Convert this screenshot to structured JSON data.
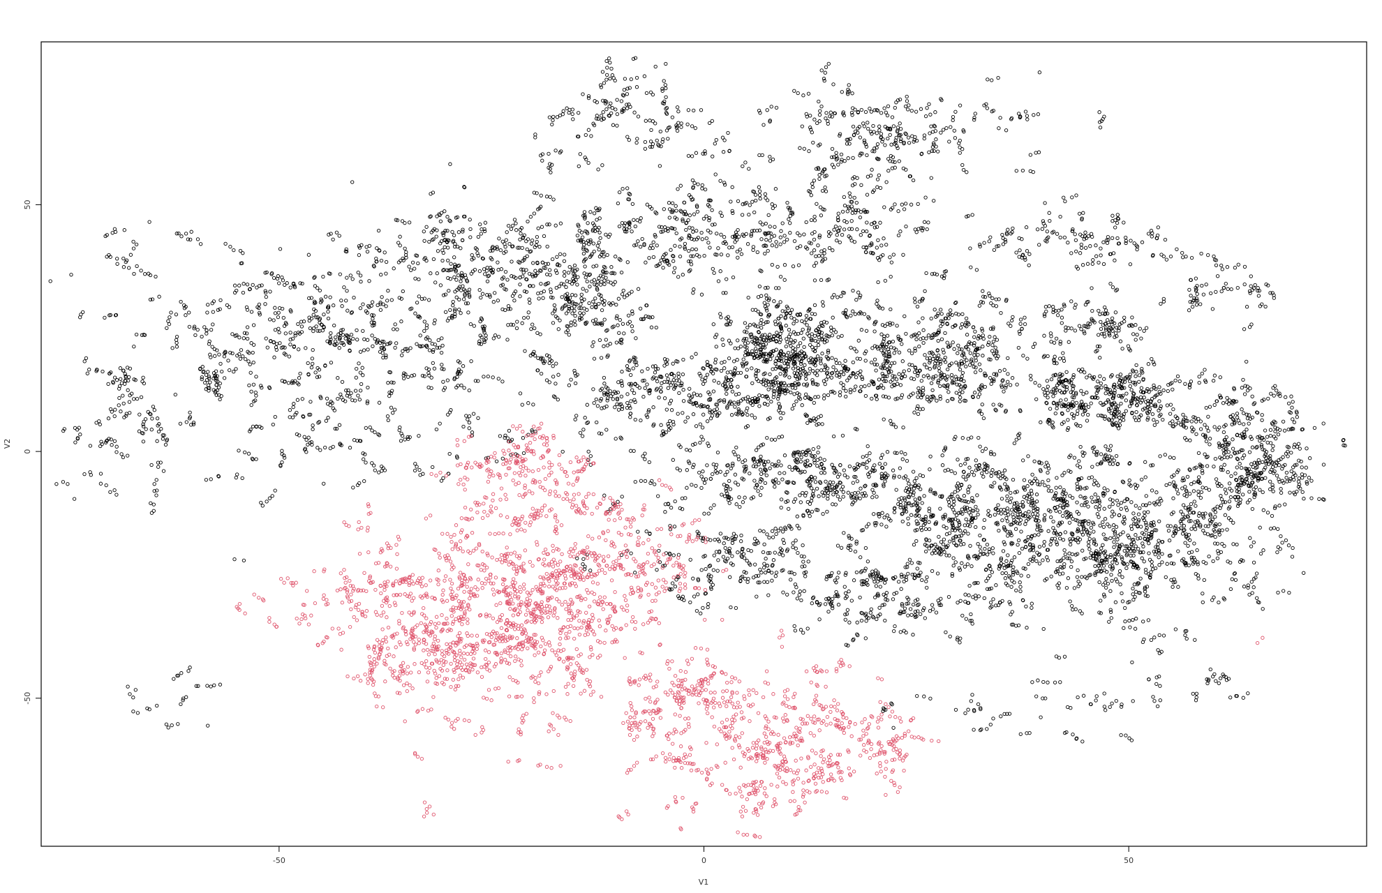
{
  "chart_data": {
    "type": "scatter",
    "title": "",
    "xlabel": "V1",
    "ylabel": "V2",
    "xlim": [
      -78,
      78
    ],
    "ylim": [
      -80,
      83
    ],
    "xticks": [
      -50,
      0,
      50
    ],
    "yticks": [
      -50,
      0,
      50
    ],
    "xtick_labels": [
      "-50",
      "0",
      "50"
    ],
    "ytick_labels": [
      "-50",
      "0",
      "50"
    ],
    "grid": false,
    "legend": "none",
    "series": [
      {
        "color": "#000000",
        "marker": "open-circle",
        "clusters": [
          {
            "cx": -44,
            "cy": 22,
            "rx": 26,
            "ry": 28,
            "n": 1000
          },
          {
            "cx": -68,
            "cy": 3,
            "rx": 6,
            "ry": 14,
            "n": 120
          },
          {
            "cx": -25,
            "cy": 38,
            "rx": 15,
            "ry": 12,
            "n": 320
          },
          {
            "cx": -12,
            "cy": 32,
            "rx": 10,
            "ry": 20,
            "n": 300
          },
          {
            "cx": 0,
            "cy": 45,
            "rx": 12,
            "ry": 14,
            "n": 300
          },
          {
            "cx": -10,
            "cy": 68,
            "rx": 10,
            "ry": 8,
            "n": 160
          },
          {
            "cx": 18,
            "cy": 65,
            "rx": 22,
            "ry": 10,
            "n": 320
          },
          {
            "cx": 15,
            "cy": 45,
            "rx": 12,
            "ry": 12,
            "n": 240
          },
          {
            "cx": 0,
            "cy": 12,
            "rx": 15,
            "ry": 9,
            "n": 450
          },
          {
            "cx": 9,
            "cy": 20,
            "rx": 8,
            "ry": 10,
            "n": 380
          },
          {
            "cx": 25,
            "cy": 20,
            "rx": 18,
            "ry": 12,
            "n": 700
          },
          {
            "cx": 12,
            "cy": -5,
            "rx": 18,
            "ry": 7,
            "n": 420
          },
          {
            "cx": 5,
            "cy": -22,
            "rx": 12,
            "ry": 10,
            "n": 260
          },
          {
            "cx": 20,
            "cy": -30,
            "rx": 8,
            "ry": 8,
            "n": 160
          },
          {
            "cx": 35,
            "cy": -15,
            "rx": 20,
            "ry": 18,
            "n": 950
          },
          {
            "cx": 52,
            "cy": -18,
            "rx": 15,
            "ry": 14,
            "n": 650
          },
          {
            "cx": 48,
            "cy": 12,
            "rx": 14,
            "ry": 7,
            "n": 450
          },
          {
            "cx": 64,
            "cy": 0,
            "rx": 9,
            "ry": 12,
            "n": 450
          },
          {
            "cx": 43,
            "cy": 43,
            "rx": 14,
            "ry": 7,
            "n": 160
          },
          {
            "cx": 60,
            "cy": 33,
            "rx": 7,
            "ry": 6,
            "n": 70
          },
          {
            "cx": 45,
            "cy": 25,
            "rx": 8,
            "ry": 6,
            "n": 110
          },
          {
            "cx": 38,
            "cy": -52,
            "rx": 16,
            "ry": 6,
            "n": 70
          },
          {
            "cx": 57,
            "cy": -47,
            "rx": 8,
            "ry": 4,
            "n": 35
          },
          {
            "cx": -70,
            "cy": 38,
            "rx": 6,
            "ry": 4,
            "n": 18
          },
          {
            "cx": -60,
            "cy": -50,
            "rx": 6,
            "ry": 6,
            "n": 30
          }
        ]
      },
      {
        "color": "#DF536B",
        "marker": "open-circle",
        "clusters": [
          {
            "cx": -30,
            "cy": -35,
            "rx": 17,
            "ry": 22,
            "n": 1000
          },
          {
            "cx": -15,
            "cy": -25,
            "rx": 14,
            "ry": 22,
            "n": 750
          },
          {
            "cx": 8,
            "cy": -58,
            "rx": 15,
            "ry": 16,
            "n": 550
          },
          {
            "cx": -4,
            "cy": -52,
            "rx": 8,
            "ry": 12,
            "n": 180
          },
          {
            "cx": -20,
            "cy": -3,
            "rx": 10,
            "ry": 6,
            "n": 160
          },
          {
            "cx": 22,
            "cy": -60,
            "rx": 3,
            "ry": 6,
            "n": 45
          },
          {
            "cx": 14,
            "cy": -66,
            "rx": 4,
            "ry": 4,
            "n": 30
          },
          {
            "cx": 66,
            "cy": -38,
            "rx": 0.5,
            "ry": 0.5,
            "n": 2
          }
        ]
      }
    ]
  }
}
